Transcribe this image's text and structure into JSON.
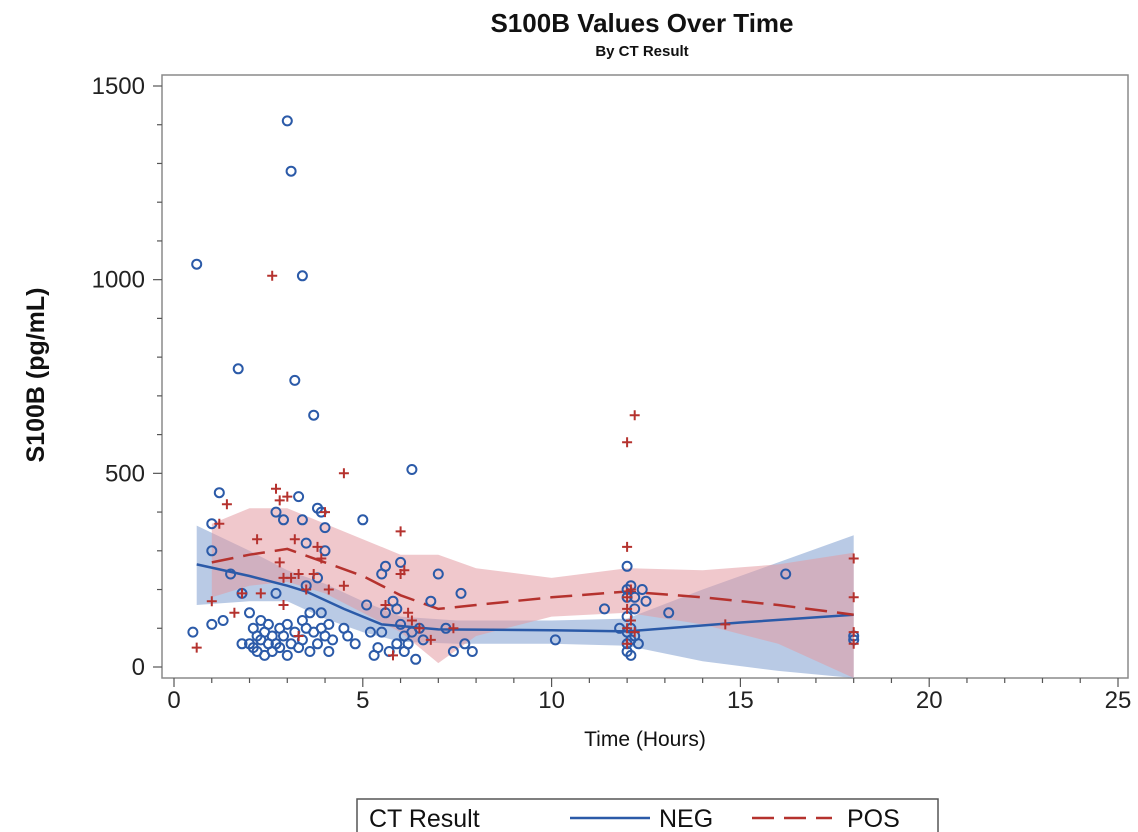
{
  "chart_data": {
    "type": "scatter",
    "title": "S100B Values Over Time",
    "subtitle": "By CT Result",
    "xlabel": "Time (Hours)",
    "ylabel": "S100B (pg/mL)",
    "xlim": [
      0,
      25
    ],
    "ylim": [
      0,
      1500
    ],
    "xticks": [
      0,
      5,
      10,
      15,
      20,
      25
    ],
    "yticks": [
      0,
      500,
      1000,
      1500
    ],
    "grid": false,
    "legend": {
      "title": "CT Result",
      "placement": "bottom",
      "entries": [
        {
          "name": "NEG",
          "color": "#2b5aa8",
          "line": "solid"
        },
        {
          "name": "POS",
          "color": "#b5322e",
          "line": "dashed"
        }
      ]
    },
    "series": [
      {
        "name": "NEG",
        "marker": "circle",
        "color": "#2b5aa8",
        "band_color": "#7f9fd0",
        "points": [
          [
            0.5,
            90
          ],
          [
            0.6,
            1040
          ],
          [
            1.0,
            300
          ],
          [
            1.0,
            370
          ],
          [
            1.0,
            110
          ],
          [
            1.2,
            450
          ],
          [
            1.3,
            120
          ],
          [
            1.5,
            240
          ],
          [
            1.7,
            770
          ],
          [
            1.8,
            190
          ],
          [
            1.8,
            60
          ],
          [
            2.0,
            140
          ],
          [
            2.0,
            60
          ],
          [
            2.1,
            100
          ],
          [
            2.1,
            50
          ],
          [
            2.2,
            80
          ],
          [
            2.2,
            40
          ],
          [
            2.3,
            120
          ],
          [
            2.3,
            70
          ],
          [
            2.4,
            90
          ],
          [
            2.4,
            30
          ],
          [
            2.5,
            60
          ],
          [
            2.5,
            110
          ],
          [
            2.6,
            40
          ],
          [
            2.6,
            80
          ],
          [
            2.7,
            400
          ],
          [
            2.7,
            190
          ],
          [
            2.7,
            60
          ],
          [
            2.8,
            100
          ],
          [
            2.8,
            50
          ],
          [
            2.9,
            380
          ],
          [
            2.9,
            80
          ],
          [
            3.0,
            1410
          ],
          [
            3.0,
            110
          ],
          [
            3.0,
            30
          ],
          [
            3.1,
            1280
          ],
          [
            3.1,
            60
          ],
          [
            3.2,
            740
          ],
          [
            3.2,
            90
          ],
          [
            3.3,
            440
          ],
          [
            3.3,
            50
          ],
          [
            3.4,
            1010
          ],
          [
            3.4,
            380
          ],
          [
            3.4,
            120
          ],
          [
            3.4,
            70
          ],
          [
            3.5,
            320
          ],
          [
            3.5,
            210
          ],
          [
            3.5,
            100
          ],
          [
            3.6,
            140
          ],
          [
            3.6,
            40
          ],
          [
            3.7,
            650
          ],
          [
            3.7,
            90
          ],
          [
            3.8,
            410
          ],
          [
            3.8,
            230
          ],
          [
            3.8,
            60
          ],
          [
            3.9,
            400
          ],
          [
            3.9,
            140
          ],
          [
            3.9,
            100
          ],
          [
            4.0,
            300
          ],
          [
            4.0,
            360
          ],
          [
            4.0,
            80
          ],
          [
            4.1,
            110
          ],
          [
            4.1,
            40
          ],
          [
            4.2,
            70
          ],
          [
            4.5,
            100
          ],
          [
            4.6,
            80
          ],
          [
            4.8,
            60
          ],
          [
            5.0,
            380
          ],
          [
            5.1,
            160
          ],
          [
            5.2,
            90
          ],
          [
            5.3,
            30
          ],
          [
            5.4,
            50
          ],
          [
            5.5,
            240
          ],
          [
            5.5,
            90
          ],
          [
            5.6,
            140
          ],
          [
            5.6,
            260
          ],
          [
            5.7,
            40
          ],
          [
            5.8,
            170
          ],
          [
            5.9,
            150
          ],
          [
            5.9,
            60
          ],
          [
            6.0,
            270
          ],
          [
            6.0,
            110
          ],
          [
            6.1,
            80
          ],
          [
            6.1,
            40
          ],
          [
            6.2,
            60
          ],
          [
            6.3,
            510
          ],
          [
            6.3,
            90
          ],
          [
            6.4,
            20
          ],
          [
            6.5,
            100
          ],
          [
            6.6,
            70
          ],
          [
            6.8,
            170
          ],
          [
            7.0,
            240
          ],
          [
            7.2,
            100
          ],
          [
            7.4,
            40
          ],
          [
            7.6,
            190
          ],
          [
            7.7,
            60
          ],
          [
            7.9,
            40
          ],
          [
            10.1,
            70
          ],
          [
            11.4,
            150
          ],
          [
            11.8,
            100
          ],
          [
            12.0,
            200
          ],
          [
            12.0,
            260
          ],
          [
            12.0,
            180
          ],
          [
            12.0,
            130
          ],
          [
            12.0,
            90
          ],
          [
            12.0,
            60
          ],
          [
            12.0,
            40
          ],
          [
            12.1,
            210
          ],
          [
            12.1,
            100
          ],
          [
            12.1,
            70
          ],
          [
            12.1,
            30
          ],
          [
            12.2,
            180
          ],
          [
            12.2,
            150
          ],
          [
            12.2,
            80
          ],
          [
            12.3,
            60
          ],
          [
            12.4,
            200
          ],
          [
            12.5,
            170
          ],
          [
            13.1,
            140
          ],
          [
            16.2,
            240
          ],
          [
            18.0,
            80
          ],
          [
            18.0,
            70
          ]
        ],
        "fit": [
          [
            0.6,
            265
          ],
          [
            2.0,
            235
          ],
          [
            3.0,
            210
          ],
          [
            3.5,
            195
          ],
          [
            4.5,
            150
          ],
          [
            5.5,
            110
          ],
          [
            7.0,
            97
          ],
          [
            10.0,
            95
          ],
          [
            12.0,
            92
          ],
          [
            15.0,
            115
          ],
          [
            18.0,
            135
          ]
        ],
        "band": [
          [
            0.6,
            160,
            365
          ],
          [
            2.0,
            170,
            300
          ],
          [
            3.0,
            170,
            250
          ],
          [
            4.0,
            125,
            215
          ],
          [
            5.0,
            90,
            170
          ],
          [
            6.0,
            65,
            130
          ],
          [
            7.5,
            60,
            120
          ],
          [
            10.0,
            60,
            120
          ],
          [
            12.0,
            55,
            125
          ],
          [
            14.0,
            15,
            200
          ],
          [
            16.0,
            -10,
            270
          ],
          [
            18.0,
            -50,
            340
          ]
        ]
      },
      {
        "name": "POS",
        "marker": "plus",
        "color": "#b5322e",
        "band_color": "#e39aa3",
        "points": [
          [
            0.6,
            50
          ],
          [
            1.0,
            170
          ],
          [
            1.2,
            370
          ],
          [
            1.4,
            420
          ],
          [
            1.6,
            140
          ],
          [
            1.8,
            190
          ],
          [
            2.2,
            330
          ],
          [
            2.3,
            190
          ],
          [
            2.6,
            1010
          ],
          [
            2.7,
            460
          ],
          [
            2.8,
            270
          ],
          [
            2.8,
            430
          ],
          [
            2.9,
            230
          ],
          [
            2.9,
            160
          ],
          [
            3.0,
            440
          ],
          [
            3.1,
            230
          ],
          [
            3.2,
            330
          ],
          [
            3.3,
            80
          ],
          [
            3.3,
            240
          ],
          [
            3.5,
            200
          ],
          [
            3.7,
            240
          ],
          [
            3.8,
            310
          ],
          [
            3.9,
            280
          ],
          [
            4.0,
            400
          ],
          [
            4.1,
            200
          ],
          [
            4.5,
            500
          ],
          [
            4.5,
            210
          ],
          [
            5.6,
            160
          ],
          [
            5.8,
            30
          ],
          [
            6.0,
            240
          ],
          [
            6.0,
            350
          ],
          [
            6.1,
            250
          ],
          [
            6.2,
            140
          ],
          [
            6.3,
            120
          ],
          [
            6.5,
            100
          ],
          [
            6.8,
            70
          ],
          [
            7.4,
            100
          ],
          [
            12.0,
            580
          ],
          [
            12.0,
            310
          ],
          [
            12.0,
            180
          ],
          [
            12.0,
            150
          ],
          [
            12.0,
            100
          ],
          [
            12.0,
            60
          ],
          [
            12.1,
            200
          ],
          [
            12.1,
            120
          ],
          [
            12.2,
            650
          ],
          [
            12.2,
            90
          ],
          [
            14.6,
            110
          ],
          [
            18.0,
            280
          ],
          [
            18.0,
            180
          ],
          [
            18.0,
            90
          ],
          [
            18.0,
            60
          ]
        ],
        "fit": [
          [
            1.0,
            270
          ],
          [
            2.0,
            290
          ],
          [
            3.0,
            305
          ],
          [
            4.0,
            270
          ],
          [
            5.0,
            235
          ],
          [
            6.0,
            185
          ],
          [
            7.0,
            150
          ],
          [
            8.0,
            160
          ],
          [
            10.0,
            180
          ],
          [
            12.0,
            195
          ],
          [
            14.0,
            180
          ],
          [
            16.0,
            160
          ],
          [
            18.0,
            135
          ]
        ],
        "band": [
          [
            1.0,
            180,
            370
          ],
          [
            2.0,
            210,
            410
          ],
          [
            3.0,
            220,
            410
          ],
          [
            4.0,
            190,
            370
          ],
          [
            5.0,
            140,
            330
          ],
          [
            6.0,
            90,
            290
          ],
          [
            7.0,
            10,
            290
          ],
          [
            8.0,
            80,
            255
          ],
          [
            10.0,
            130,
            230
          ],
          [
            12.0,
            140,
            255
          ],
          [
            14.0,
            110,
            250
          ],
          [
            16.0,
            60,
            265
          ],
          [
            18.0,
            -30,
            295
          ]
        ]
      }
    ]
  }
}
